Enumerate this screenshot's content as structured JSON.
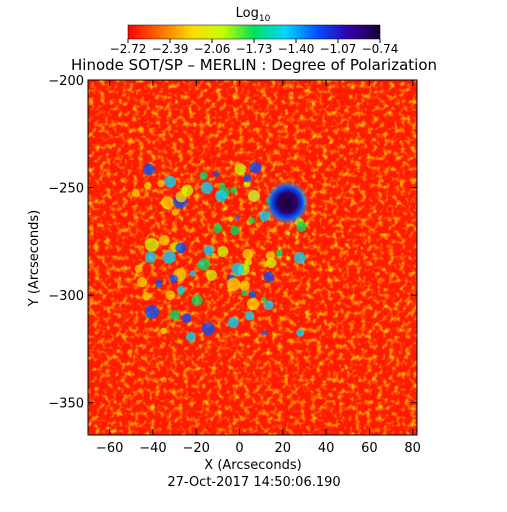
{
  "chart_data": {
    "type": "heatmap",
    "title": "Hinode SOT/SP – MERLIN : Degree of Polarization",
    "xlabel": "X (Arcseconds)",
    "ylabel": "Y (Arcseconds)",
    "footer": "27-Oct-2017 14:50:06.190",
    "xlim": [
      -70,
      82
    ],
    "ylim": [
      -365,
      -200
    ],
    "x_ticks": [
      -60,
      -40,
      -20,
      0,
      20,
      40,
      60,
      80
    ],
    "y_ticks": [
      -200,
      -250,
      -300,
      -350
    ],
    "x_tick_labels": [
      "−60",
      "−40",
      "−20",
      "0",
      "20",
      "40",
      "60",
      "80"
    ],
    "y_tick_labels": [
      "−200",
      "−250",
      "−300",
      "−350"
    ],
    "colorbar": {
      "label_base": "Log",
      "label_sub": "10",
      "range": [
        -2.72,
        -0.74
      ],
      "tick_labels": [
        "−2.72",
        "−2.39",
        "−2.06",
        "−1.73",
        "−1.40",
        "−1.07",
        "−0.74"
      ],
      "colormap": "rainbow",
      "colors": [
        "#ff0000",
        "#ff6a00",
        "#ffd800",
        "#c8ff00",
        "#00e060",
        "#00d8ff",
        "#0050ff",
        "#3300aa",
        "#1a0033"
      ]
    },
    "background_level": -2.6,
    "features": [
      {
        "name": "sunspot",
        "x": 22,
        "y": -257,
        "level": -0.74
      },
      {
        "name": "plage",
        "region": "center-left",
        "x_range": [
          -50,
          30
        ],
        "y_range": [
          -320,
          -240
        ],
        "level": -1.5
      }
    ]
  }
}
